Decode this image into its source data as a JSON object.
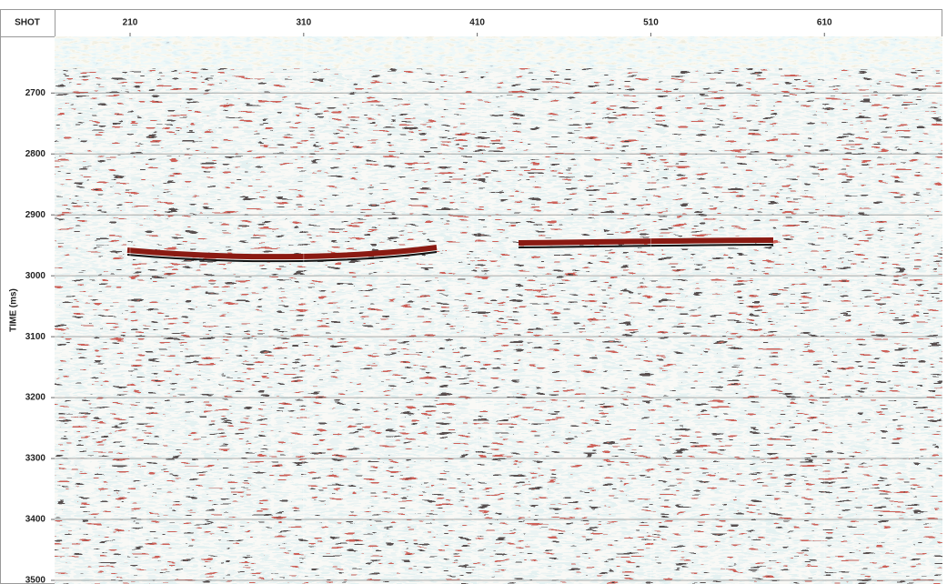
{
  "chart_data": {
    "type": "seismic",
    "x_label": "SHOT",
    "y_label": "TIME (ms)",
    "xlim": [
      166.5,
      678
    ],
    "xticks": [
      210,
      310,
      410,
      510,
      610
    ],
    "ylim": [
      2607,
      3506
    ],
    "yticks": [
      2700,
      2800,
      2900,
      3000,
      3100,
      3200,
      3300,
      3400,
      3500
    ],
    "y_inverted": true,
    "grid": true
  }
}
